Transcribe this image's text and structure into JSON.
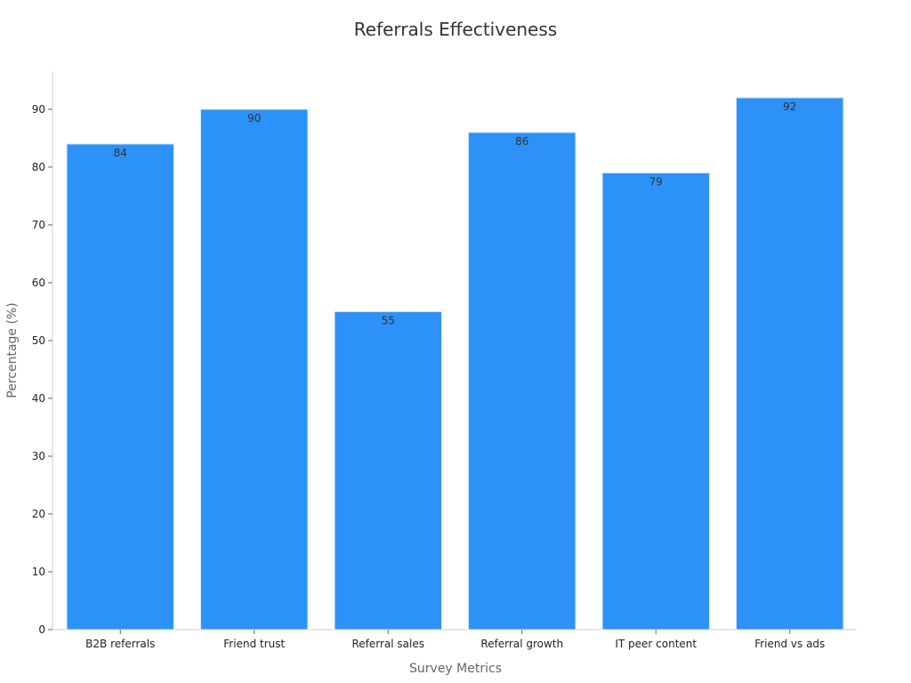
{
  "chart_data": {
    "type": "bar",
    "title": "Referrals Effectiveness",
    "xlabel": "Survey Metrics",
    "ylabel": "Percentage (%)",
    "categories": [
      "B2B referrals",
      "Friend trust",
      "Referral sales",
      "Referral growth",
      "IT peer content",
      "Friend vs ads"
    ],
    "values": [
      84,
      90,
      55,
      86,
      79,
      92
    ],
    "yticks": [
      0,
      10,
      20,
      30,
      40,
      50,
      60,
      70,
      80,
      90
    ],
    "ylim": [
      0,
      96.6
    ],
    "grid": false,
    "legend": "none",
    "colors": {
      "bar": "#2d92f8",
      "bar_edge": "#d6e7ff"
    }
  }
}
